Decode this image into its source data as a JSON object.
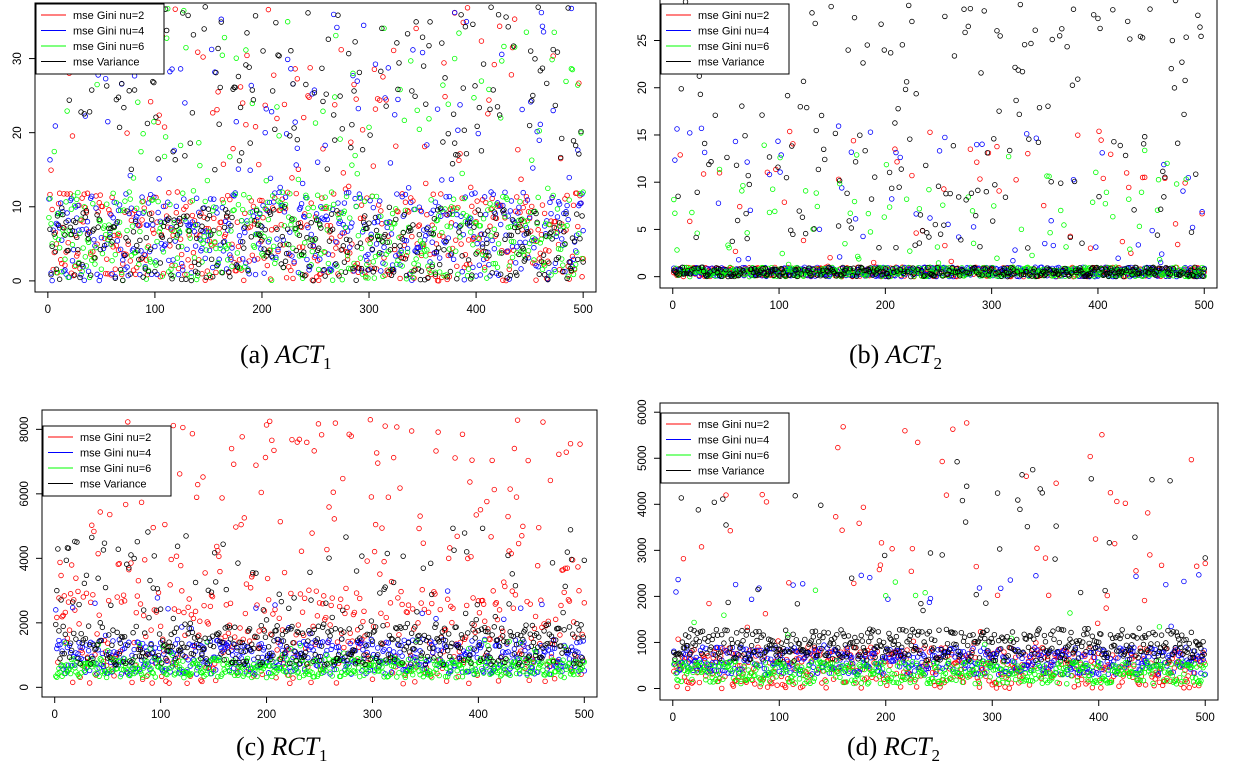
{
  "legend": [
    {
      "label": "mse Gini nu=2",
      "color": "#ff0000"
    },
    {
      "label": "mse Gini nu=4",
      "color": "#0000ff"
    },
    {
      "label": "mse Gini nu=6",
      "color": "#00ff00"
    },
    {
      "label": "mse Variance",
      "color": "#000000"
    }
  ],
  "chart_data": [
    {
      "id": "a",
      "type": "scatter",
      "caption": {
        "prefix": "(a)",
        "var": "ACT",
        "sub": "1"
      },
      "x_ticks": [
        0,
        100,
        200,
        300,
        400,
        500
      ],
      "y_ticks": [
        0,
        10,
        20,
        30
      ],
      "xlim": [
        -12,
        512
      ],
      "ylim": [
        -1.5,
        37.5
      ],
      "n_points": 500,
      "series": [
        {
          "name": "mse Gini nu=2",
          "color": "#ff0000",
          "typical_range": [
            0,
            12
          ],
          "outlier_range": [
            12,
            37
          ],
          "outlier_rate": 0.15
        },
        {
          "name": "mse Gini nu=4",
          "color": "#0000ff",
          "typical_range": [
            0,
            12
          ],
          "outlier_range": [
            12,
            37
          ],
          "outlier_rate": 0.17
        },
        {
          "name": "mse Gini nu=6",
          "color": "#00ff00",
          "typical_range": [
            0,
            12
          ],
          "outlier_range": [
            12,
            37
          ],
          "outlier_rate": 0.18
        },
        {
          "name": "mse Variance",
          "color": "#000000",
          "typical_range": [
            0,
            10
          ],
          "outlier_range": [
            15,
            37
          ],
          "outlier_rate": 0.3
        }
      ]
    },
    {
      "id": "b",
      "type": "scatter",
      "caption": {
        "prefix": "(b)",
        "var": "ACT",
        "sub": "2"
      },
      "x_ticks": [
        0,
        100,
        200,
        300,
        400,
        500
      ],
      "y_ticks": [
        0,
        5,
        10,
        15,
        20,
        25
      ],
      "xlim": [
        -12,
        512
      ],
      "ylim": [
        -1.2,
        29.5
      ],
      "n_points": 500,
      "series": [
        {
          "name": "mse Gini nu=2",
          "color": "#ff0000",
          "typical_range": [
            0,
            1
          ],
          "outlier_range": [
            1,
            16
          ],
          "outlier_rate": 0.12
        },
        {
          "name": "mse Gini nu=4",
          "color": "#0000ff",
          "typical_range": [
            0,
            1
          ],
          "outlier_range": [
            1,
            16
          ],
          "outlier_rate": 0.12
        },
        {
          "name": "mse Gini nu=6",
          "color": "#00ff00",
          "typical_range": [
            0,
            1
          ],
          "outlier_range": [
            1,
            14
          ],
          "outlier_rate": 0.12
        },
        {
          "name": "mse Variance",
          "color": "#000000",
          "typical_range": [
            0,
            1
          ],
          "outlier_range": [
            3,
            30
          ],
          "outlier_rate": 0.4
        }
      ]
    },
    {
      "id": "c",
      "type": "scatter",
      "caption": {
        "prefix": "(c)",
        "var": "RCT",
        "sub": "1"
      },
      "x_ticks": [
        0,
        100,
        200,
        300,
        400,
        500
      ],
      "y_ticks": [
        0,
        2000,
        4000,
        6000,
        8000
      ],
      "xlim": [
        -12,
        512
      ],
      "ylim": [
        -300,
        8600
      ],
      "n_points": 500,
      "series": [
        {
          "name": "mse Gini nu=2",
          "color": "#ff0000",
          "typical_range": [
            100,
            3000
          ],
          "outlier_range": [
            3000,
            8300
          ],
          "outlier_rate": 0.35
        },
        {
          "name": "mse Gini nu=4",
          "color": "#0000ff",
          "typical_range": [
            400,
            1500
          ],
          "outlier_range": [
            1500,
            3000
          ],
          "outlier_rate": 0.05
        },
        {
          "name": "mse Gini nu=6",
          "color": "#00ff00",
          "typical_range": [
            300,
            900
          ],
          "outlier_range": [
            900,
            1500
          ],
          "outlier_rate": 0.05
        },
        {
          "name": "mse Variance",
          "color": "#000000",
          "typical_range": [
            700,
            2000
          ],
          "outlier_range": [
            2000,
            5000
          ],
          "outlier_rate": 0.2
        }
      ]
    },
    {
      "id": "d",
      "type": "scatter",
      "caption": {
        "prefix": "(d)",
        "var": "RCT",
        "sub": "2"
      },
      "x_ticks": [
        0,
        100,
        200,
        300,
        400,
        500
      ],
      "y_ticks": [
        0,
        1000,
        2000,
        3000,
        4000,
        5000,
        6000
      ],
      "xlim": [
        -12,
        512
      ],
      "ylim": [
        -250,
        6200
      ],
      "n_points": 500,
      "series": [
        {
          "name": "mse Gini nu=2",
          "color": "#ff0000",
          "typical_range": [
            0,
            900
          ],
          "outlier_range": [
            900,
            5800
          ],
          "outlier_rate": 0.15
        },
        {
          "name": "mse Gini nu=4",
          "color": "#0000ff",
          "typical_range": [
            300,
            900
          ],
          "outlier_range": [
            900,
            2500
          ],
          "outlier_rate": 0.04
        },
        {
          "name": "mse Gini nu=6",
          "color": "#00ff00",
          "typical_range": [
            100,
            600
          ],
          "outlier_range": [
            600,
            2500
          ],
          "outlier_rate": 0.03
        },
        {
          "name": "mse Variance",
          "color": "#000000",
          "typical_range": [
            600,
            1300
          ],
          "outlier_range": [
            1300,
            5000
          ],
          "outlier_rate": 0.1
        }
      ]
    }
  ]
}
